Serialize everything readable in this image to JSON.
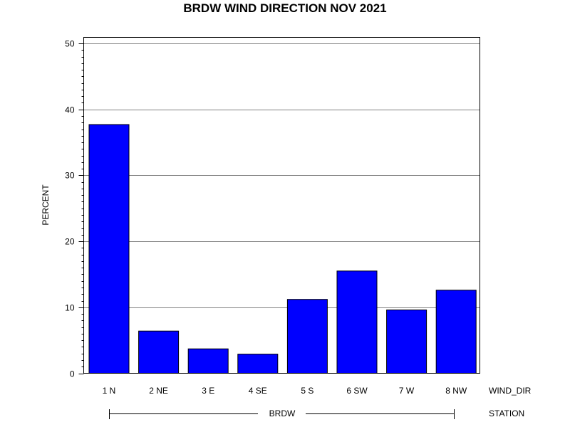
{
  "chart_data": {
    "type": "bar",
    "title": "BRDW WIND DIRECTION NOV 2021",
    "ylabel": "PERCENT",
    "xlabel": "WIND_DIR",
    "group_axis_label": "STATION",
    "group_label": "BRDW",
    "categories": [
      "1 N",
      "2 NE",
      "3 E",
      "4 SE",
      "5 S",
      "6 SW",
      "7 W",
      "8 NW"
    ],
    "values": [
      37.7,
      6.4,
      3.7,
      2.9,
      11.2,
      15.5,
      9.6,
      12.6
    ],
    "ylim": [
      0,
      50
    ],
    "yticks": [
      "0",
      "10",
      "20",
      "30",
      "40",
      "50"
    ],
    "grid": true,
    "bar_color": "#0000ff",
    "bar_edge_color": "#000000",
    "grid_color": "#808080"
  }
}
